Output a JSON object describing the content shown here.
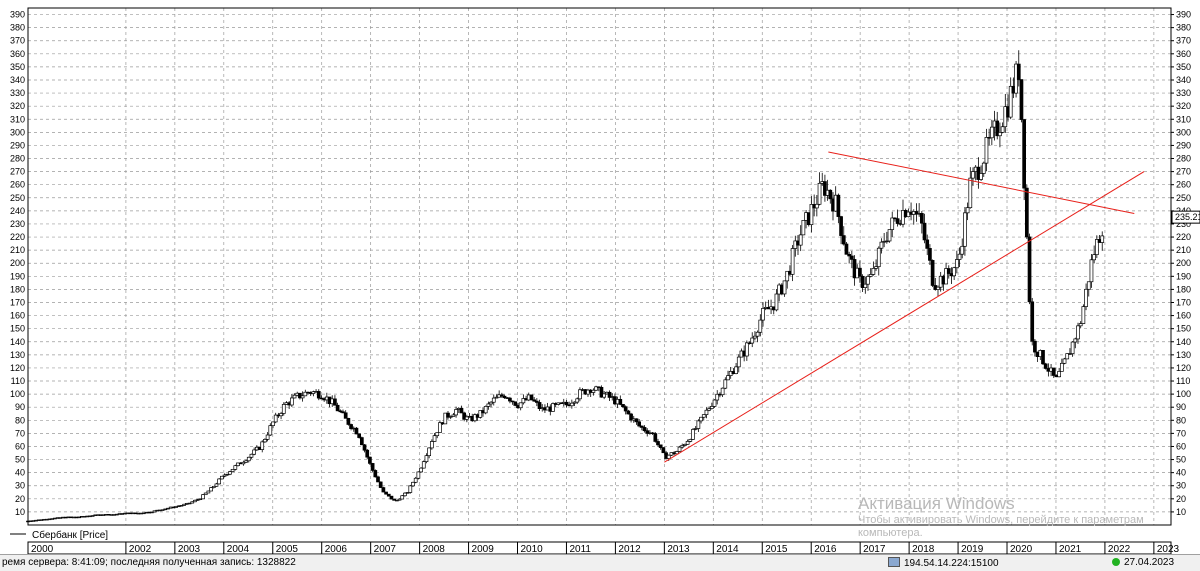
{
  "chart_data": {
    "type": "candlestick",
    "legend": "Сбербанк [Price]",
    "last_price_label": "235.21",
    "y_ticks": [
      10,
      20,
      30,
      40,
      50,
      60,
      70,
      80,
      90,
      100,
      110,
      120,
      130,
      140,
      150,
      160,
      170,
      180,
      190,
      200,
      210,
      220,
      230,
      240,
      250,
      260,
      270,
      280,
      290,
      300,
      310,
      320,
      330,
      340,
      350,
      360,
      370,
      380,
      390
    ],
    "x_ticks": [
      "2000",
      "2002",
      "2003",
      "2004",
      "2005",
      "2006",
      "2007",
      "2008",
      "2009",
      "2010",
      "2011",
      "2012",
      "2013",
      "2014",
      "2015",
      "2016",
      "2017",
      "2018",
      "2019",
      "2020",
      "2021",
      "2022",
      "2023"
    ],
    "ylim": [
      0,
      395
    ],
    "x": [
      2000.0,
      2000.25,
      2000.5,
      2000.75,
      2001.0,
      2001.25,
      2001.5,
      2001.75,
      2002.0,
      2002.25,
      2002.5,
      2002.75,
      2003.0,
      2003.25,
      2003.5,
      2003.75,
      2004.0,
      2004.25,
      2004.5,
      2004.75,
      2005.0,
      2005.25,
      2005.5,
      2005.75,
      2006.0,
      2006.25,
      2006.5,
      2006.75,
      2007.0,
      2007.25,
      2007.5,
      2007.75,
      2008.0,
      2008.25,
      2008.5,
      2008.75,
      2009.0,
      2009.25,
      2009.5,
      2009.75,
      2010.0,
      2010.25,
      2010.5,
      2010.75,
      2011.0,
      2011.25,
      2011.5,
      2011.75,
      2012.0,
      2012.25,
      2012.5,
      2012.75,
      2013.0,
      2013.25,
      2013.5,
      2013.75,
      2014.0,
      2014.25,
      2014.5,
      2014.75,
      2015.0,
      2015.25,
      2015.5,
      2015.75,
      2016.0,
      2016.25,
      2016.5,
      2016.75,
      2017.0,
      2017.25,
      2017.5,
      2017.75,
      2018.0,
      2018.25,
      2018.5,
      2018.75,
      2019.0,
      2019.25,
      2019.5,
      2019.75,
      2020.0,
      2020.25,
      2020.5,
      2020.75,
      2021.0,
      2021.25,
      2021.5,
      2021.75,
      2022.0
    ],
    "close": [
      3,
      4,
      5,
      6,
      6,
      7,
      8,
      8,
      9,
      9,
      10,
      12,
      14,
      16,
      20,
      28,
      38,
      45,
      52,
      60,
      78,
      92,
      98,
      102,
      100,
      92,
      80,
      70,
      45,
      25,
      18,
      25,
      42,
      65,
      82,
      88,
      80,
      85,
      95,
      100,
      92,
      97,
      88,
      90,
      92,
      100,
      105,
      100,
      95,
      85,
      75,
      70,
      52,
      56,
      66,
      80,
      95,
      110,
      125,
      140,
      160,
      170,
      190,
      220,
      240,
      260,
      245,
      205,
      185,
      190,
      220,
      235,
      245,
      230,
      185,
      190,
      200,
      260,
      280,
      300,
      320,
      350,
      140,
      125,
      110,
      130,
      155,
      205,
      235
    ],
    "trendlines": [
      {
        "from": [
          2016.35,
          285
        ],
        "to": [
          2022.6,
          238
        ]
      },
      {
        "from": [
          2013.0,
          48
        ],
        "to": [
          2022.8,
          270
        ]
      }
    ]
  },
  "status": {
    "server_time": "ремя сервера: 8:41:09; последняя полученная запись: 1328822",
    "server": "194.54.14.224:15100",
    "date": "27.04.2023"
  },
  "watermark": {
    "title": "Активация Windows",
    "text": "Чтобы активировать Windows, перейдите к параметрам компьютера."
  }
}
